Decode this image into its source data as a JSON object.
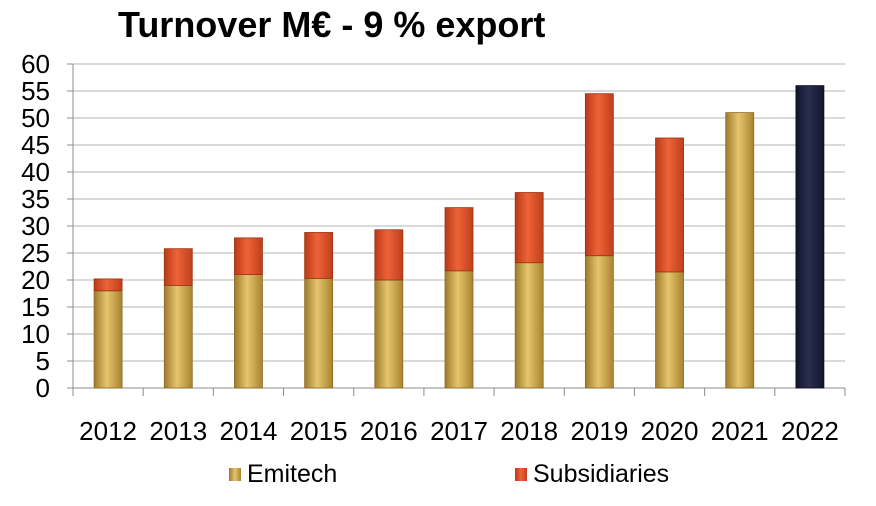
{
  "chart_data": {
    "type": "bar",
    "stacked": true,
    "title": "Turnover M€ - 9 % export",
    "xlabel": "",
    "ylabel": "",
    "ylim": [
      0,
      60
    ],
    "ytick_step": 5,
    "yticks": [
      "0",
      "5",
      "10",
      "15",
      "20",
      "25",
      "30",
      "35",
      "40",
      "45",
      "50",
      "55",
      "60"
    ],
    "grid": true,
    "legend_position": "bottom",
    "categories": [
      "2012",
      "2013",
      "2014",
      "2015",
      "2016",
      "2017",
      "2018",
      "2019",
      "2020",
      "2021",
      "2022"
    ],
    "series": [
      {
        "name": "Emitech",
        "color": "#C9A24A",
        "values": [
          18,
          19,
          21,
          20.3,
          20,
          21.7,
          23.2,
          24.5,
          21.5,
          51,
          0
        ]
      },
      {
        "name": "Subsidiaries",
        "color": "#E0502A",
        "values": [
          2.2,
          6.8,
          6.8,
          8.5,
          9.3,
          11.7,
          13,
          30,
          24.8,
          0,
          0
        ]
      }
    ],
    "highlight": {
      "category": "2022",
      "value": 56,
      "color": "#1B1F3B"
    }
  }
}
